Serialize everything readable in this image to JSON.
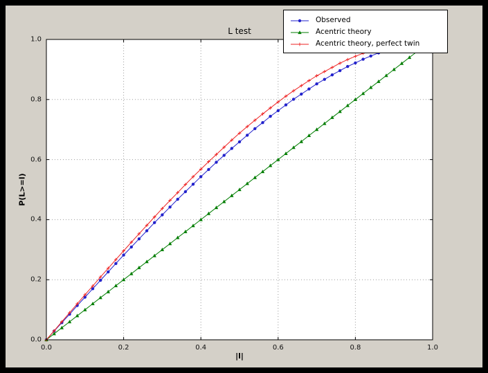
{
  "colors": {
    "frame_bg": "#000000",
    "figure_bg": "#d4d0c8",
    "plot_bg": "#ffffff",
    "grid": "#9b9b9b",
    "axes": "#000000"
  },
  "chart_data": {
    "type": "line",
    "title": "L test",
    "xlabel": "|l|",
    "ylabel": "P(L>=l)",
    "xlim": [
      0,
      1
    ],
    "ylim": [
      0,
      1
    ],
    "grid": "dotted",
    "legend_position": "upper right",
    "xtick_values": [
      0,
      0.2,
      0.4,
      0.6,
      0.8,
      1.0
    ],
    "xtick_labels": [
      "0.0",
      "0.2",
      "0.4",
      "0.6",
      "0.8",
      "1.0"
    ],
    "ytick_values": [
      0,
      0.2,
      0.4,
      0.6,
      0.8,
      1.0
    ],
    "ytick_labels": [
      "0.0",
      "0.2",
      "0.4",
      "0.6",
      "0.8",
      "1.0"
    ],
    "series": [
      {
        "name": "Observed",
        "color": "#2222cc",
        "marker": "circle",
        "x": [
          0,
          0.02,
          0.04,
          0.06,
          0.08,
          0.1,
          0.12,
          0.14,
          0.16,
          0.18,
          0.2,
          0.22,
          0.24,
          0.26,
          0.28,
          0.3,
          0.32,
          0.34,
          0.36,
          0.38,
          0.4,
          0.42,
          0.44,
          0.46,
          0.48,
          0.5,
          0.52,
          0.54,
          0.56,
          0.58,
          0.6,
          0.62,
          0.64,
          0.66,
          0.68,
          0.7,
          0.72,
          0.74,
          0.76,
          0.78,
          0.8,
          0.82,
          0.84,
          0.86
        ],
        "y": [
          0,
          0.029,
          0.057,
          0.085,
          0.114,
          0.142,
          0.17,
          0.198,
          0.226,
          0.254,
          0.282,
          0.309,
          0.336,
          0.363,
          0.39,
          0.416,
          0.442,
          0.468,
          0.493,
          0.518,
          0.543,
          0.567,
          0.591,
          0.614,
          0.637,
          0.659,
          0.681,
          0.703,
          0.723,
          0.744,
          0.763,
          0.782,
          0.801,
          0.818,
          0.835,
          0.852,
          0.867,
          0.882,
          0.896,
          0.91,
          0.922,
          0.934,
          0.945,
          0.955
        ]
      },
      {
        "name": "Acentric theory",
        "color": "#007d00",
        "marker": "triangle",
        "x": [
          0,
          0.02,
          0.04,
          0.06,
          0.08,
          0.1,
          0.12,
          0.14,
          0.16,
          0.18,
          0.2,
          0.22,
          0.24,
          0.26,
          0.28,
          0.3,
          0.32,
          0.34,
          0.36,
          0.38,
          0.4,
          0.42,
          0.44,
          0.46,
          0.48,
          0.5,
          0.52,
          0.54,
          0.56,
          0.58,
          0.6,
          0.62,
          0.64,
          0.66,
          0.68,
          0.7,
          0.72,
          0.74,
          0.76,
          0.78,
          0.8,
          0.82,
          0.84,
          0.86,
          0.88,
          0.9,
          0.92,
          0.94,
          0.96
        ],
        "y": [
          0,
          0.02,
          0.04,
          0.06,
          0.08,
          0.1,
          0.12,
          0.14,
          0.16,
          0.18,
          0.2,
          0.22,
          0.24,
          0.26,
          0.28,
          0.3,
          0.32,
          0.34,
          0.36,
          0.38,
          0.4,
          0.42,
          0.44,
          0.46,
          0.48,
          0.5,
          0.52,
          0.54,
          0.56,
          0.58,
          0.6,
          0.62,
          0.64,
          0.66,
          0.68,
          0.7,
          0.72,
          0.74,
          0.76,
          0.78,
          0.8,
          0.82,
          0.84,
          0.86,
          0.88,
          0.9,
          0.92,
          0.94,
          0.96
        ]
      },
      {
        "name": "Acentric theory, perfect twin",
        "color": "#ee2222",
        "marker": "plus",
        "x": [
          0,
          0.02,
          0.04,
          0.06,
          0.08,
          0.1,
          0.12,
          0.14,
          0.16,
          0.18,
          0.2,
          0.22,
          0.24,
          0.26,
          0.28,
          0.3,
          0.32,
          0.34,
          0.36,
          0.38,
          0.4,
          0.42,
          0.44,
          0.46,
          0.48,
          0.5,
          0.52,
          0.54,
          0.56,
          0.58,
          0.6,
          0.62,
          0.64,
          0.66,
          0.68,
          0.7,
          0.72,
          0.74,
          0.76,
          0.78,
          0.8,
          0.82,
          0.84,
          0.86
        ],
        "y": [
          0,
          0.03,
          0.06,
          0.09,
          0.12,
          0.15,
          0.179,
          0.209,
          0.238,
          0.267,
          0.296,
          0.325,
          0.353,
          0.381,
          0.409,
          0.437,
          0.464,
          0.49,
          0.517,
          0.543,
          0.568,
          0.593,
          0.617,
          0.641,
          0.665,
          0.688,
          0.71,
          0.731,
          0.752,
          0.772,
          0.792,
          0.811,
          0.829,
          0.846,
          0.863,
          0.879,
          0.893,
          0.907,
          0.921,
          0.933,
          0.944,
          0.954,
          0.964,
          0.972
        ]
      }
    ]
  }
}
